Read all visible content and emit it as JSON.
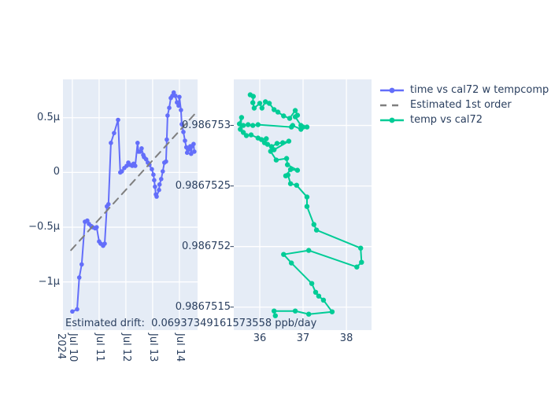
{
  "figure": {
    "background": "#ffffff",
    "panel_bg": "#e5ecf6",
    "grid_color": "#ffffff",
    "text_color": "#2a3f5f",
    "annotation": "Estimated drift:  0.06937349161573558 ppb/day"
  },
  "legend": {
    "items": [
      {
        "label": "time vs cal72 w tempcomp",
        "color": "#636efa",
        "dash": false,
        "marker": true
      },
      {
        "label": "Estimated 1st order",
        "color": "#7f7f7f",
        "dash": true,
        "marker": false
      },
      {
        "label": "temp vs cal72",
        "color": "#00cc96",
        "dash": false,
        "marker": true
      }
    ]
  },
  "panels": {
    "left": {
      "x_range": [
        -0.35,
        4.68
      ],
      "y_range": [
        -1.44,
        0.85
      ],
      "x_unit": "days since 2024-07-10",
      "y_unit": "cal72 offset (µ)",
      "x_ticks": [
        {
          "v": 0,
          "label": "Jul 10",
          "year": "2024"
        },
        {
          "v": 1,
          "label": "Jul 11"
        },
        {
          "v": 2,
          "label": "Jul 12"
        },
        {
          "v": 3,
          "label": "Jul 13"
        },
        {
          "v": 4,
          "label": "Jul 14"
        }
      ],
      "y_ticks": [
        {
          "v": 0.5,
          "label": "0.5µ"
        },
        {
          "v": 0,
          "label": "0"
        },
        {
          "v": -0.5,
          "label": "−0.5µ"
        },
        {
          "v": -1,
          "label": "−1µ"
        }
      ]
    },
    "right": {
      "x_range": [
        35.4,
        38.58
      ],
      "y_range": [
        0.98675131,
        0.98675338
      ],
      "x_unit": "temp",
      "y_unit": "cal72",
      "x_ticks": [
        {
          "v": 36,
          "label": "36"
        },
        {
          "v": 37,
          "label": "37"
        },
        {
          "v": 38,
          "label": "38"
        }
      ],
      "y_ticks": [
        {
          "v": 0.986753,
          "label": "0.986753"
        },
        {
          "v": 0.9867525,
          "label": "0.9867525"
        },
        {
          "v": 0.986752,
          "label": "0.986752"
        },
        {
          "v": 0.9867515,
          "label": "0.9867515"
        }
      ]
    }
  },
  "chart_data": [
    {
      "type": "line",
      "name": "time vs cal72 w tempcomp",
      "panel": "left",
      "color": "#636efa",
      "markers": true,
      "dash": false,
      "x": [
        0,
        0.18,
        0.26,
        0.35,
        0.47,
        0.56,
        0.62,
        0.71,
        0.76,
        0.85,
        0.91,
        1.0,
        1.06,
        1.15,
        1.21,
        1.29,
        1.35,
        1.44,
        1.56,
        1.71,
        1.79,
        1.85,
        1.94,
        2.03,
        2.09,
        2.15,
        2.24,
        2.29,
        2.35,
        2.44,
        2.47,
        2.53,
        2.59,
        2.65,
        2.68,
        2.76,
        2.82,
        2.88,
        2.97,
        3.03,
        3.06,
        3.09,
        3.12,
        3.15,
        3.24,
        3.26,
        3.32,
        3.38,
        3.44,
        3.5,
        3.53,
        3.56,
        3.62,
        3.68,
        3.74,
        3.79,
        3.85,
        3.91,
        3.97,
        4.0,
        4.06,
        4.09,
        4.15,
        4.21,
        4.26,
        4.29,
        4.35,
        4.41,
        4.44,
        4.47,
        4.53,
        4.56
      ],
      "y": [
        -1.27,
        -1.25,
        -0.96,
        -0.84,
        -0.45,
        -0.44,
        -0.47,
        -0.49,
        -0.5,
        -0.51,
        -0.5,
        -0.63,
        -0.65,
        -0.67,
        -0.65,
        -0.31,
        -0.29,
        0.27,
        0.36,
        0.48,
        0,
        0.01,
        0.04,
        0.06,
        0.09,
        0.07,
        0.06,
        0.08,
        0.06,
        0.27,
        0.19,
        0.19,
        0.22,
        0.16,
        0.14,
        0.12,
        0.09,
        0.07,
        0.03,
        -0.02,
        -0.07,
        -0.13,
        -0.2,
        -0.22,
        -0.16,
        -0.11,
        -0.06,
        0.01,
        0.09,
        0.1,
        0.3,
        0.52,
        0.59,
        0.68,
        0.7,
        0.73,
        0.7,
        0.64,
        0.61,
        0.69,
        0.57,
        0.44,
        0.37,
        0.29,
        0.23,
        0.18,
        0.21,
        0.24,
        0.17,
        0.24,
        0.26,
        0.19
      ]
    },
    {
      "type": "line",
      "name": "Estimated 1st order",
      "panel": "left",
      "color": "#7f7f7f",
      "markers": false,
      "dash": true,
      "x": [
        -0.05,
        4.56
      ],
      "y": [
        -0.71,
        0.53
      ]
    },
    {
      "type": "line",
      "name": "temp vs cal72",
      "panel": "right",
      "color": "#00cc96",
      "markers": true,
      "dash": false,
      "x": [
        35.78,
        35.85,
        35.84,
        35.87,
        36.0,
        36.05,
        36.13,
        36.22,
        36.33,
        36.42,
        36.55,
        36.69,
        36.82,
        36.87,
        36.82,
        36.95,
        37.09,
        37.0,
        36.95,
        36.76,
        36.73,
        35.96,
        35.84,
        35.73,
        35.62,
        35.53,
        35.58,
        35.55,
        35.62,
        35.69,
        35.8,
        35.96,
        36.04,
        36.15,
        36.11,
        36.18,
        36.27,
        36.4,
        36.53,
        36.67,
        36.33,
        36.25,
        36.38,
        36.62,
        36.64,
        36.87,
        36.71,
        36.6,
        36.65,
        36.71,
        36.85,
        37.09,
        37.09,
        37.25,
        37.31,
        38.33,
        38.35,
        38.24,
        37.13,
        36.55,
        36.73,
        37.2,
        37.29,
        37.36,
        37.47,
        37.67,
        37.13,
        36.82,
        36.33,
        36.36
      ],
      "y": [
        0.986753253,
        0.98675324,
        0.986753188,
        0.986753143,
        0.986753182,
        0.986753143,
        0.986753195,
        0.986753182,
        0.98675313,
        0.98675311,
        0.986753078,
        0.986753058,
        0.986753123,
        0.986753084,
        0.986753071,
        0.986753,
        0.986752987,
        0.986752987,
        0.986752968,
        0.986753,
        0.986752987,
        0.986753006,
        0.986753,
        0.986753006,
        0.986753,
        0.986753013,
        0.986753065,
        0.986752968,
        0.986752942,
        0.986752916,
        0.986752922,
        0.986752896,
        0.986752883,
        0.98675289,
        0.986752857,
        0.986752844,
        0.986752825,
        0.986752851,
        0.986752857,
        0.98675287,
        0.986752799,
        0.986752786,
        0.986752714,
        0.986752727,
        0.986752675,
        0.98675263,
        0.986752636,
        0.986752584,
        0.986752591,
        0.986752519,
        0.986752506,
        0.986752409,
        0.986752331,
        0.986752182,
        0.986752136,
        0.986751987,
        0.98675187,
        0.986751831,
        0.986751968,
        0.986751935,
        0.986751864,
        0.986751695,
        0.986751623,
        0.986751591,
        0.986751558,
        0.986751461,
        0.986751442,
        0.986751468,
        0.986751468,
        0.986751429
      ]
    }
  ]
}
